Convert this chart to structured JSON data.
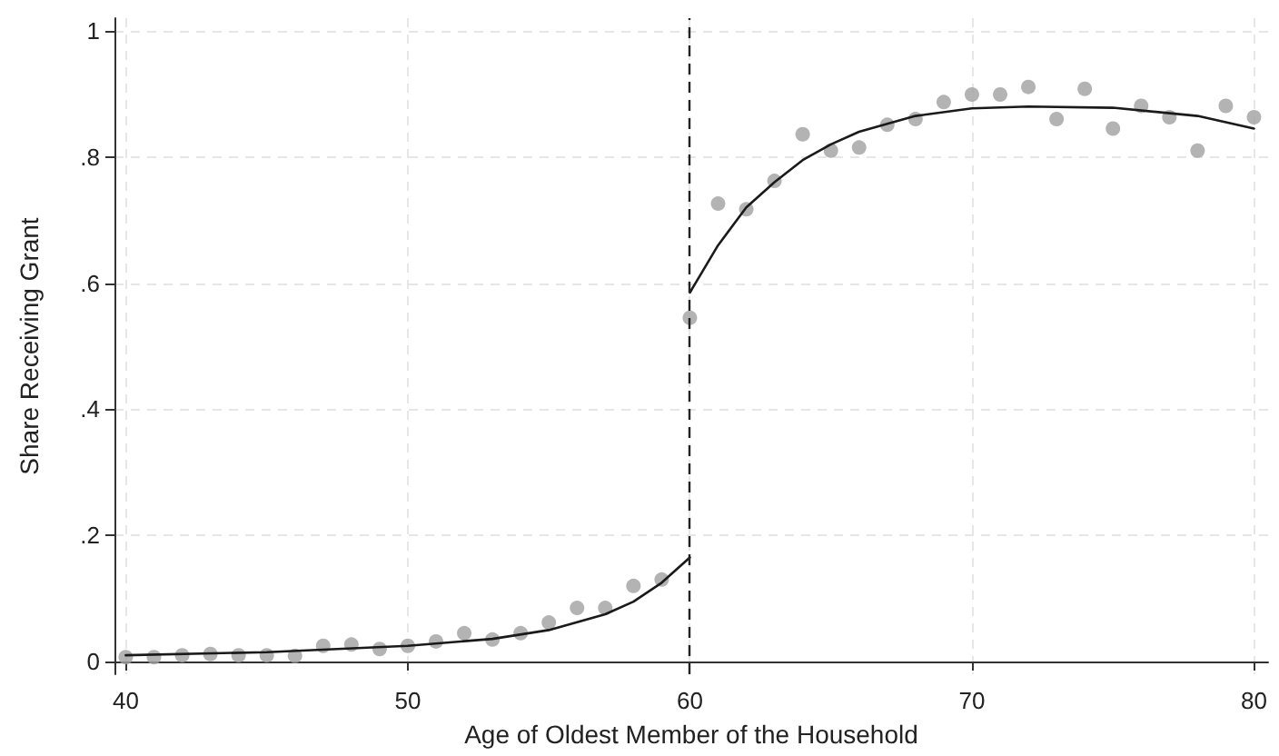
{
  "chart_data": {
    "type": "scatter",
    "xlabel": "Age of Oldest Member of the Household",
    "ylabel": "Share Receiving Grant",
    "xlim": [
      39.6,
      80.5
    ],
    "xticks": [
      40,
      50,
      60,
      70,
      80
    ],
    "ylim": [
      -0.02,
      1.02
    ],
    "yticks": [
      {
        "value": 0,
        "label": "0"
      },
      {
        "value": 0.2,
        "label": ".2"
      },
      {
        "value": 0.4,
        "label": ".4"
      },
      {
        "value": 0.6,
        "label": ".6"
      },
      {
        "value": 0.8,
        "label": ".8"
      },
      {
        "value": 1,
        "label": "1"
      }
    ],
    "grid": true,
    "series": [
      {
        "marker": "circle",
        "color": "#a0a0a0",
        "x": [
          40,
          41,
          42,
          43,
          44,
          45,
          46,
          47,
          48,
          49,
          50,
          51,
          52,
          53,
          54,
          55,
          56,
          57,
          58,
          59,
          60,
          61,
          62,
          63,
          64,
          65,
          66,
          67,
          68,
          69,
          70,
          71,
          72,
          73,
          74,
          75,
          76,
          77,
          78,
          79,
          80
        ],
        "values": [
          0.007,
          0.007,
          0.01,
          0.012,
          0.01,
          0.01,
          0.009,
          0.025,
          0.027,
          0.02,
          0.025,
          0.032,
          0.045,
          0.035,
          0.045,
          0.062,
          0.085,
          0.085,
          0.12,
          0.13,
          0.545,
          0.726,
          0.717,
          0.762,
          0.836,
          0.81,
          0.815,
          0.851,
          0.86,
          0.887,
          0.899,
          0.899,
          0.911,
          0.86,
          0.908,
          0.845,
          0.881,
          0.863,
          0.81,
          0.881,
          0.863
        ]
      },
      {
        "type": "line",
        "marker": "none",
        "line_style": "solid",
        "color": "#1a1a1a",
        "x": [
          40,
          45,
          50,
          53,
          55,
          57,
          58,
          59,
          60
        ],
        "values": [
          0.01,
          0.015,
          0.025,
          0.036,
          0.05,
          0.075,
          0.095,
          0.125,
          0.165
        ]
      },
      {
        "type": "line",
        "marker": "none",
        "line_style": "solid",
        "color": "#1a1a1a",
        "x": [
          60,
          61,
          62,
          63,
          64,
          65,
          66,
          68,
          70,
          72,
          75,
          78,
          80
        ],
        "values": [
          0.585,
          0.66,
          0.72,
          0.76,
          0.795,
          0.82,
          0.84,
          0.865,
          0.877,
          0.88,
          0.878,
          0.865,
          0.845
        ]
      }
    ],
    "ref_lines": [
      {
        "axis": "x",
        "value": 60,
        "color": "#222222",
        "line_style": "dashed"
      }
    ]
  }
}
